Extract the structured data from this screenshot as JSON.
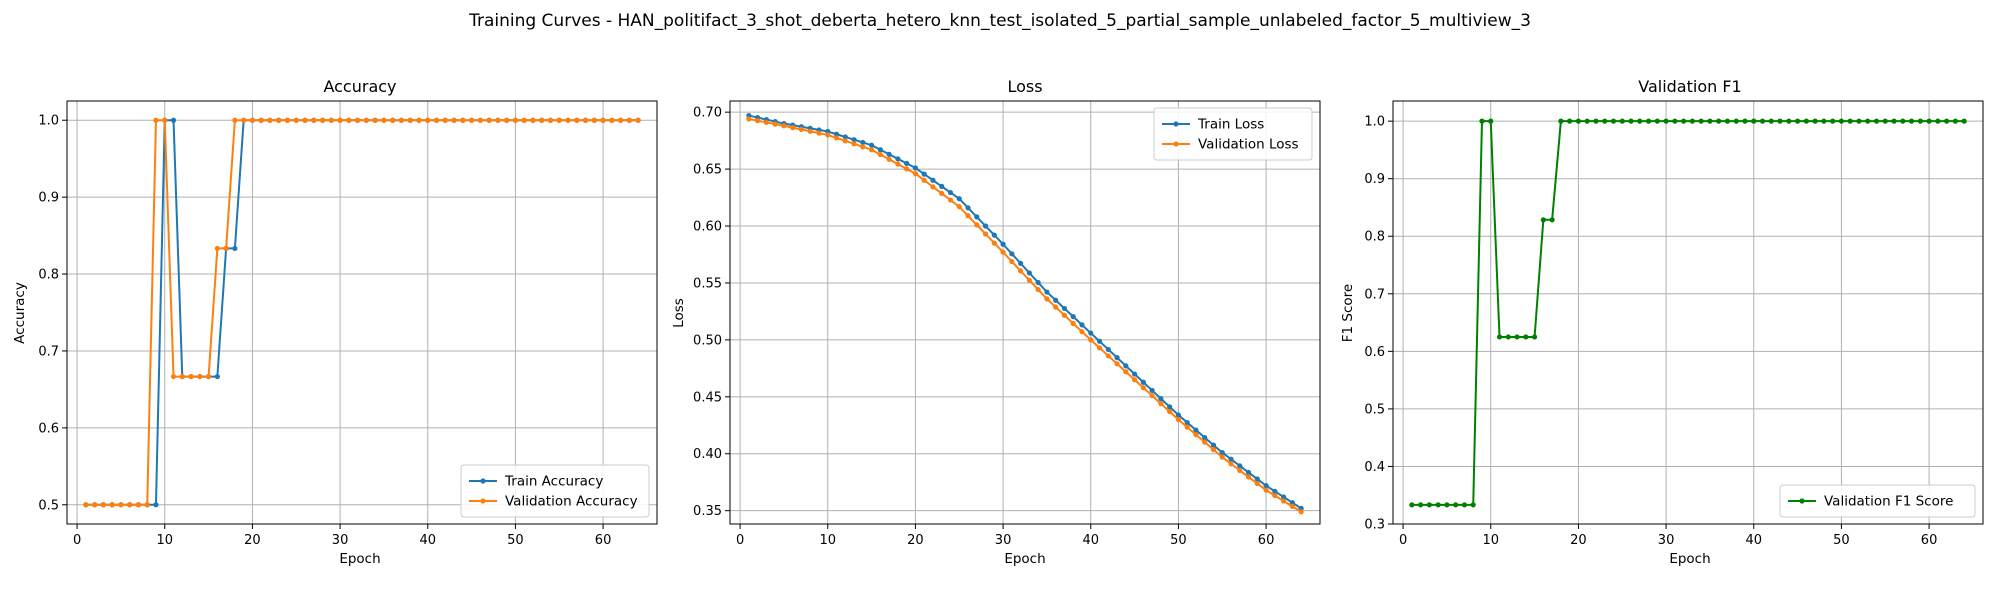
{
  "figure": {
    "title": "Training Curves - HAN_politifact_3_shot_deberta_hetero_knn_test_isolated_5_partial_sample_unlabeled_factor_5_multiview_3"
  },
  "colors": {
    "blue": "#1f77b4",
    "orange": "#ff7f0e",
    "green": "#008000",
    "grid": "#b0b0b0"
  },
  "chart_data": [
    {
      "type": "line",
      "title": "Accuracy",
      "xlabel": "Epoch",
      "ylabel": "Accuracy",
      "xlim": [
        -1.15,
        66.15
      ],
      "ylim": [
        0.475,
        1.025
      ],
      "xticks": [
        0,
        10,
        20,
        30,
        40,
        50,
        60
      ],
      "yticks": [
        0.5,
        0.6,
        0.7,
        0.8,
        0.9,
        1.0
      ],
      "ytick_labels": [
        "0.5",
        "0.6",
        "0.7",
        "0.8",
        "0.9",
        "1.0"
      ],
      "grid": true,
      "legend_position": "lower right",
      "x_range": [
        1,
        64
      ],
      "series": [
        {
          "name": "Train Accuracy",
          "color": "#1f77b4",
          "segments": [
            {
              "from": 1,
              "to": 9,
              "value": 0.5
            },
            {
              "from": 10,
              "to": 11,
              "value": 1.0
            },
            {
              "from": 12,
              "to": 16,
              "value": 0.6667
            },
            {
              "from": 17,
              "to": 18,
              "value": 0.8333
            },
            {
              "from": 19,
              "to": 64,
              "value": 1.0
            }
          ]
        },
        {
          "name": "Validation Accuracy",
          "color": "#ff7f0e",
          "segments": [
            {
              "from": 1,
              "to": 8,
              "value": 0.5
            },
            {
              "from": 9,
              "to": 10,
              "value": 1.0
            },
            {
              "from": 11,
              "to": 15,
              "value": 0.6667
            },
            {
              "from": 16,
              "to": 17,
              "value": 0.8333
            },
            {
              "from": 18,
              "to": 64,
              "value": 1.0
            }
          ]
        }
      ]
    },
    {
      "type": "line",
      "title": "Loss",
      "xlabel": "Epoch",
      "ylabel": "Loss",
      "xlim": [
        -1.15,
        66.15
      ],
      "ylim": [
        0.3383,
        0.7098
      ],
      "xticks": [
        0,
        10,
        20,
        30,
        40,
        50,
        60
      ],
      "yticks": [
        0.35,
        0.4,
        0.45,
        0.5,
        0.55,
        0.6,
        0.65,
        0.7
      ],
      "ytick_labels": [
        "0.35",
        "0.40",
        "0.45",
        "0.50",
        "0.55",
        "0.60",
        "0.65",
        "0.70"
      ],
      "grid": true,
      "legend_position": "upper right",
      "x_range": [
        1,
        64
      ],
      "series": [
        {
          "name": "Train Loss",
          "color": "#1f77b4",
          "anchors": [
            [
              1,
              0.697
            ],
            [
              5,
              0.69
            ],
            [
              10,
              0.683
            ],
            [
              15,
              0.671
            ],
            [
              20,
              0.651
            ],
            [
              25,
              0.624
            ],
            [
              30,
              0.584
            ],
            [
              35,
              0.542
            ],
            [
              40,
              0.506
            ],
            [
              45,
              0.47
            ],
            [
              50,
              0.434
            ],
            [
              55,
              0.401
            ],
            [
              60,
              0.372
            ],
            [
              64,
              0.352
            ]
          ]
        },
        {
          "name": "Validation Loss",
          "color": "#ff7f0e",
          "anchors": [
            [
              1,
              0.694
            ],
            [
              5,
              0.688
            ],
            [
              10,
              0.68
            ],
            [
              15,
              0.667
            ],
            [
              20,
              0.646
            ],
            [
              25,
              0.617
            ],
            [
              30,
              0.577
            ],
            [
              35,
              0.536
            ],
            [
              40,
              0.5
            ],
            [
              45,
              0.465
            ],
            [
              50,
              0.43
            ],
            [
              55,
              0.397
            ],
            [
              60,
              0.368
            ],
            [
              64,
              0.349
            ]
          ]
        }
      ]
    },
    {
      "type": "line",
      "title": "Validation F1",
      "xlabel": "Epoch",
      "ylabel": "F1 Score",
      "xlim": [
        -1.15,
        66.15
      ],
      "ylim": [
        0.3,
        1.035
      ],
      "xticks": [
        0,
        10,
        20,
        30,
        40,
        50,
        60
      ],
      "yticks": [
        0.3,
        0.4,
        0.5,
        0.6,
        0.7,
        0.8,
        0.9,
        1.0
      ],
      "ytick_labels": [
        "0.3",
        "0.4",
        "0.5",
        "0.6",
        "0.7",
        "0.8",
        "0.9",
        "1.0"
      ],
      "grid": true,
      "legend_position": "lower right",
      "x_range": [
        1,
        64
      ],
      "series": [
        {
          "name": "Validation F1 Score",
          "color": "#008000",
          "segments": [
            {
              "from": 1,
              "to": 8,
              "value": 0.3333
            },
            {
              "from": 9,
              "to": 10,
              "value": 1.0
            },
            {
              "from": 11,
              "to": 15,
              "value": 0.625
            },
            {
              "from": 16,
              "to": 17,
              "value": 0.8286
            },
            {
              "from": 18,
              "to": 64,
              "value": 1.0
            }
          ]
        }
      ]
    }
  ]
}
